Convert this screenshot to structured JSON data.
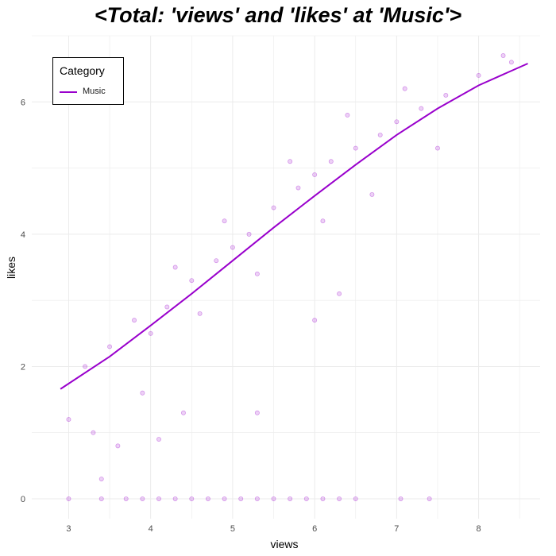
{
  "chart_data": {
    "type": "scatter",
    "title": "<Total: 'views' and 'likes' at 'Music'>",
    "xlabel": "views",
    "ylabel": "likes",
    "xlim": [
      2.55,
      8.75
    ],
    "ylim": [
      -0.3,
      7.0
    ],
    "x_ticks": [
      3,
      4,
      5,
      6,
      7,
      8
    ],
    "y_ticks": [
      0,
      2,
      4,
      6
    ],
    "grid": true,
    "legend": {
      "title": "Category",
      "position": "top-left"
    },
    "series": [
      {
        "name": "Music",
        "color": "#9900cc",
        "point_alpha": 0.18,
        "fit_line": [
          [
            2.9,
            1.66
          ],
          [
            3.5,
            2.15
          ],
          [
            4.0,
            2.62
          ],
          [
            4.5,
            3.1
          ],
          [
            5.0,
            3.6
          ],
          [
            5.5,
            4.1
          ],
          [
            6.0,
            4.58
          ],
          [
            6.5,
            5.05
          ],
          [
            7.0,
            5.5
          ],
          [
            7.5,
            5.9
          ],
          [
            8.0,
            6.25
          ],
          [
            8.6,
            6.58
          ]
        ],
        "points": [
          [
            4.0,
            2.5
          ],
          [
            4.2,
            2.9
          ],
          [
            4.5,
            3.3
          ],
          [
            4.8,
            3.6
          ],
          [
            5.0,
            3.8
          ],
          [
            5.2,
            4.0
          ],
          [
            5.5,
            4.4
          ],
          [
            5.8,
            4.7
          ],
          [
            6.0,
            4.9
          ],
          [
            6.2,
            5.1
          ],
          [
            6.5,
            5.3
          ],
          [
            6.8,
            5.5
          ],
          [
            7.0,
            5.7
          ],
          [
            7.3,
            5.9
          ],
          [
            7.6,
            6.1
          ],
          [
            8.0,
            6.4
          ],
          [
            8.4,
            6.6
          ],
          [
            3.2,
            2.0
          ],
          [
            3.5,
            2.3
          ],
          [
            3.8,
            2.7
          ],
          [
            4.3,
            3.5
          ],
          [
            4.6,
            2.8
          ],
          [
            4.9,
            4.2
          ],
          [
            5.3,
            3.4
          ],
          [
            5.7,
            5.1
          ],
          [
            6.1,
            4.2
          ],
          [
            6.4,
            5.8
          ],
          [
            6.7,
            4.6
          ],
          [
            7.1,
            6.2
          ],
          [
            7.5,
            5.3
          ],
          [
            3.0,
            1.2
          ],
          [
            3.3,
            1.0
          ],
          [
            3.6,
            0.8
          ],
          [
            3.9,
            1.6
          ],
          [
            4.1,
            0.9
          ],
          [
            4.4,
            1.3
          ],
          [
            5.3,
            1.3
          ],
          [
            3.4,
            0.3
          ],
          [
            6.3,
            3.1
          ],
          [
            6.0,
            2.7
          ],
          [
            3.0,
            0
          ],
          [
            3.4,
            0
          ],
          [
            3.7,
            0
          ],
          [
            3.9,
            0
          ],
          [
            4.1,
            0
          ],
          [
            4.3,
            0
          ],
          [
            4.5,
            0
          ],
          [
            4.7,
            0
          ],
          [
            4.9,
            0
          ],
          [
            5.1,
            0
          ],
          [
            5.3,
            0
          ],
          [
            5.5,
            0
          ],
          [
            5.7,
            0
          ],
          [
            5.9,
            0
          ],
          [
            6.1,
            0
          ],
          [
            6.3,
            0
          ],
          [
            6.5,
            0
          ],
          [
            7.05,
            0
          ],
          [
            7.4,
            0
          ],
          [
            8.3,
            6.7
          ]
        ]
      }
    ]
  }
}
